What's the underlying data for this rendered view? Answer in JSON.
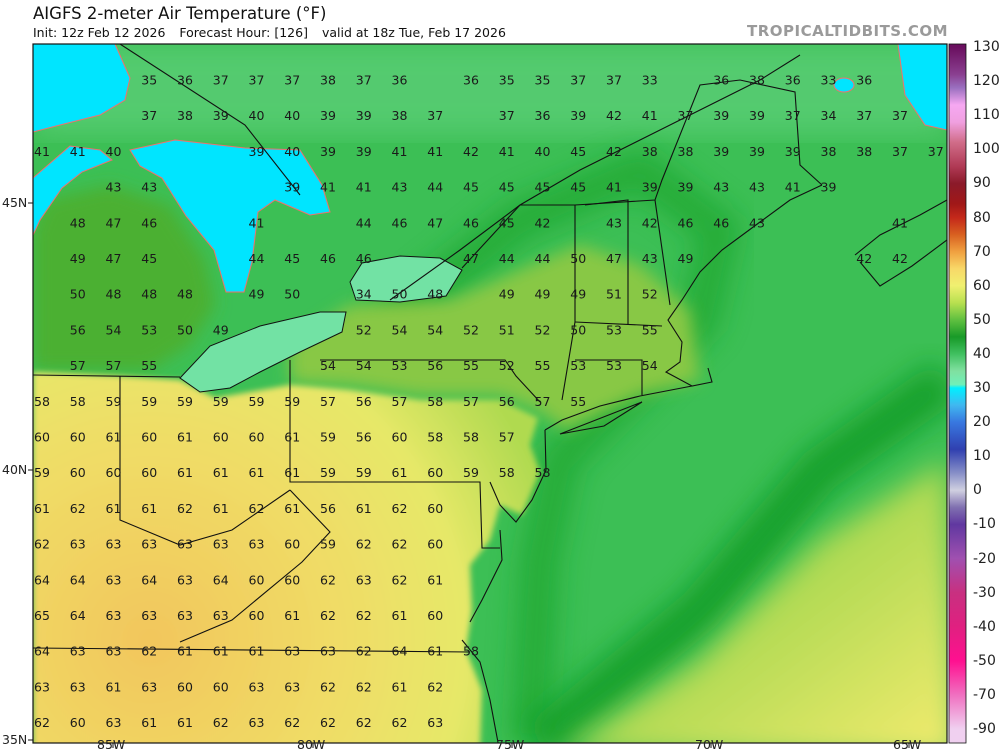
{
  "header": {
    "title": "AIGFS 2-meter Air Temperature (°F)",
    "init": "Init: 12z Feb 12 2026",
    "forecast_hour": "Forecast Hour: [126]",
    "valid": "valid at 18z Tue, Feb 17 2026"
  },
  "brand": "TROPICALTIDBITS.COM",
  "map": {
    "variable": "2-meter air temperature",
    "units": "°F",
    "lon_labels": [
      "85W",
      "80W",
      "75W",
      "70W",
      "65W"
    ],
    "lat_labels": [
      "45N",
      "40N",
      "35N"
    ],
    "colors": {
      "lake_ice_cold": "#00e5ff",
      "lake_outline": "#f07070",
      "lake_mild": "#72e2a4",
      "cool_green": "#3cbf55",
      "warm_yellow": "#efe468",
      "warm_orange": "#f2c55c",
      "border": "#111111"
    },
    "grid_values": [
      [
        null,
        null,
        null,
        35,
        36,
        37,
        37,
        37,
        38,
        37,
        36,
        null,
        36,
        35,
        35,
        37,
        37,
        33,
        null,
        36,
        38,
        36,
        33,
        36
      ],
      [
        null,
        null,
        null,
        37,
        38,
        39,
        40,
        40,
        39,
        39,
        38,
        37,
        null,
        37,
        36,
        39,
        42,
        41,
        37,
        39,
        39,
        37,
        34,
        37,
        37
      ],
      [
        41,
        41,
        40,
        null,
        null,
        null,
        39,
        40,
        39,
        39,
        41,
        41,
        42,
        41,
        40,
        45,
        42,
        38,
        38,
        39,
        39,
        39,
        38,
        38,
        37,
        37
      ],
      [
        null,
        null,
        43,
        43,
        null,
        null,
        null,
        39,
        41,
        41,
        43,
        44,
        45,
        45,
        45,
        45,
        41,
        39,
        39,
        43,
        43,
        41,
        39
      ],
      [
        null,
        48,
        47,
        46,
        null,
        null,
        41,
        null,
        null,
        44,
        46,
        47,
        46,
        45,
        42,
        null,
        43,
        42,
        46,
        46,
        43,
        null,
        null,
        null,
        41
      ],
      [
        null,
        49,
        47,
        45,
        null,
        null,
        44,
        45,
        46,
        46,
        null,
        null,
        47,
        44,
        44,
        50,
        47,
        43,
        49,
        null,
        null,
        null,
        null,
        42,
        42
      ],
      [
        null,
        50,
        48,
        48,
        48,
        null,
        49,
        50,
        null,
        34,
        50,
        48,
        null,
        49,
        49,
        49,
        51,
        52
      ],
      [
        null,
        56,
        54,
        53,
        50,
        49,
        null,
        null,
        null,
        52,
        54,
        54,
        52,
        51,
        52,
        50,
        53,
        55
      ],
      [
        null,
        57,
        57,
        55,
        null,
        null,
        null,
        null,
        54,
        54,
        53,
        56,
        55,
        52,
        55,
        53,
        53,
        54
      ],
      [
        58,
        58,
        59,
        59,
        59,
        59,
        59,
        59,
        57,
        56,
        57,
        58,
        57,
        56,
        57,
        55
      ],
      [
        60,
        60,
        61,
        60,
        61,
        60,
        60,
        61,
        59,
        56,
        60,
        58,
        58,
        57
      ],
      [
        59,
        60,
        60,
        60,
        61,
        61,
        61,
        61,
        59,
        59,
        61,
        60,
        59,
        58,
        58
      ],
      [
        61,
        62,
        61,
        61,
        62,
        61,
        62,
        61,
        56,
        61,
        62,
        60
      ],
      [
        62,
        63,
        63,
        63,
        63,
        63,
        63,
        60,
        59,
        62,
        62,
        60
      ],
      [
        64,
        64,
        63,
        64,
        63,
        64,
        60,
        60,
        62,
        63,
        62,
        61
      ],
      [
        65,
        64,
        63,
        63,
        63,
        63,
        60,
        61,
        62,
        62,
        61,
        60
      ],
      [
        64,
        63,
        63,
        62,
        61,
        61,
        61,
        63,
        63,
        62,
        64,
        61,
        58
      ],
      [
        63,
        63,
        61,
        63,
        60,
        60,
        63,
        63,
        62,
        62,
        61,
        62
      ],
      [
        62,
        60,
        63,
        61,
        61,
        62,
        63,
        62,
        62,
        62,
        62,
        63
      ]
    ]
  },
  "colorbar": {
    "labels": [
      "130",
      "120",
      "110",
      "100",
      "90",
      "80",
      "70",
      "60",
      "50",
      "40",
      "30",
      "20",
      "10",
      "0",
      "-10",
      "-20",
      "-30",
      "-40",
      "-50",
      "-70",
      "-90"
    ],
    "stops": [
      {
        "v": 130,
        "c": "#6a0f5f"
      },
      {
        "v": 122,
        "c": "#8a3f90"
      },
      {
        "v": 118,
        "c": "#9a70c0"
      },
      {
        "v": 113,
        "c": "#f6a8f2"
      },
      {
        "v": 108,
        "c": "#f0a0e0"
      },
      {
        "v": 102,
        "c": "#d06c88"
      },
      {
        "v": 95,
        "c": "#b03a55"
      },
      {
        "v": 90,
        "c": "#8b1a2a"
      },
      {
        "v": 84,
        "c": "#a01818"
      },
      {
        "v": 80,
        "c": "#c4281a"
      },
      {
        "v": 75,
        "c": "#d86020"
      },
      {
        "v": 70,
        "c": "#f0a040"
      },
      {
        "v": 65,
        "c": "#f8d868"
      },
      {
        "v": 60,
        "c": "#f0f070"
      },
      {
        "v": 55,
        "c": "#b8e050"
      },
      {
        "v": 50,
        "c": "#60c040"
      },
      {
        "v": 45,
        "c": "#189a28"
      },
      {
        "v": 40,
        "c": "#40c060"
      },
      {
        "v": 35,
        "c": "#80e0a0"
      },
      {
        "v": 31,
        "c": "#70f0b8"
      },
      {
        "v": 30,
        "c": "#00f0ff"
      },
      {
        "v": 25,
        "c": "#40b8f0"
      },
      {
        "v": 20,
        "c": "#3878e0"
      },
      {
        "v": 12,
        "c": "#3040b0"
      },
      {
        "v": 5,
        "c": "#8890c8"
      },
      {
        "v": 0,
        "c": "#d0d0e0"
      },
      {
        "v": -5,
        "c": "#8070b0"
      },
      {
        "v": -10,
        "c": "#6038a0"
      },
      {
        "v": -20,
        "c": "#a050b0"
      },
      {
        "v": -30,
        "c": "#c83080"
      },
      {
        "v": -40,
        "c": "#e02080"
      },
      {
        "v": -50,
        "c": "#ff1090"
      },
      {
        "v": -70,
        "c": "#f070c0"
      },
      {
        "v": -90,
        "c": "#f0d0f0"
      }
    ]
  }
}
